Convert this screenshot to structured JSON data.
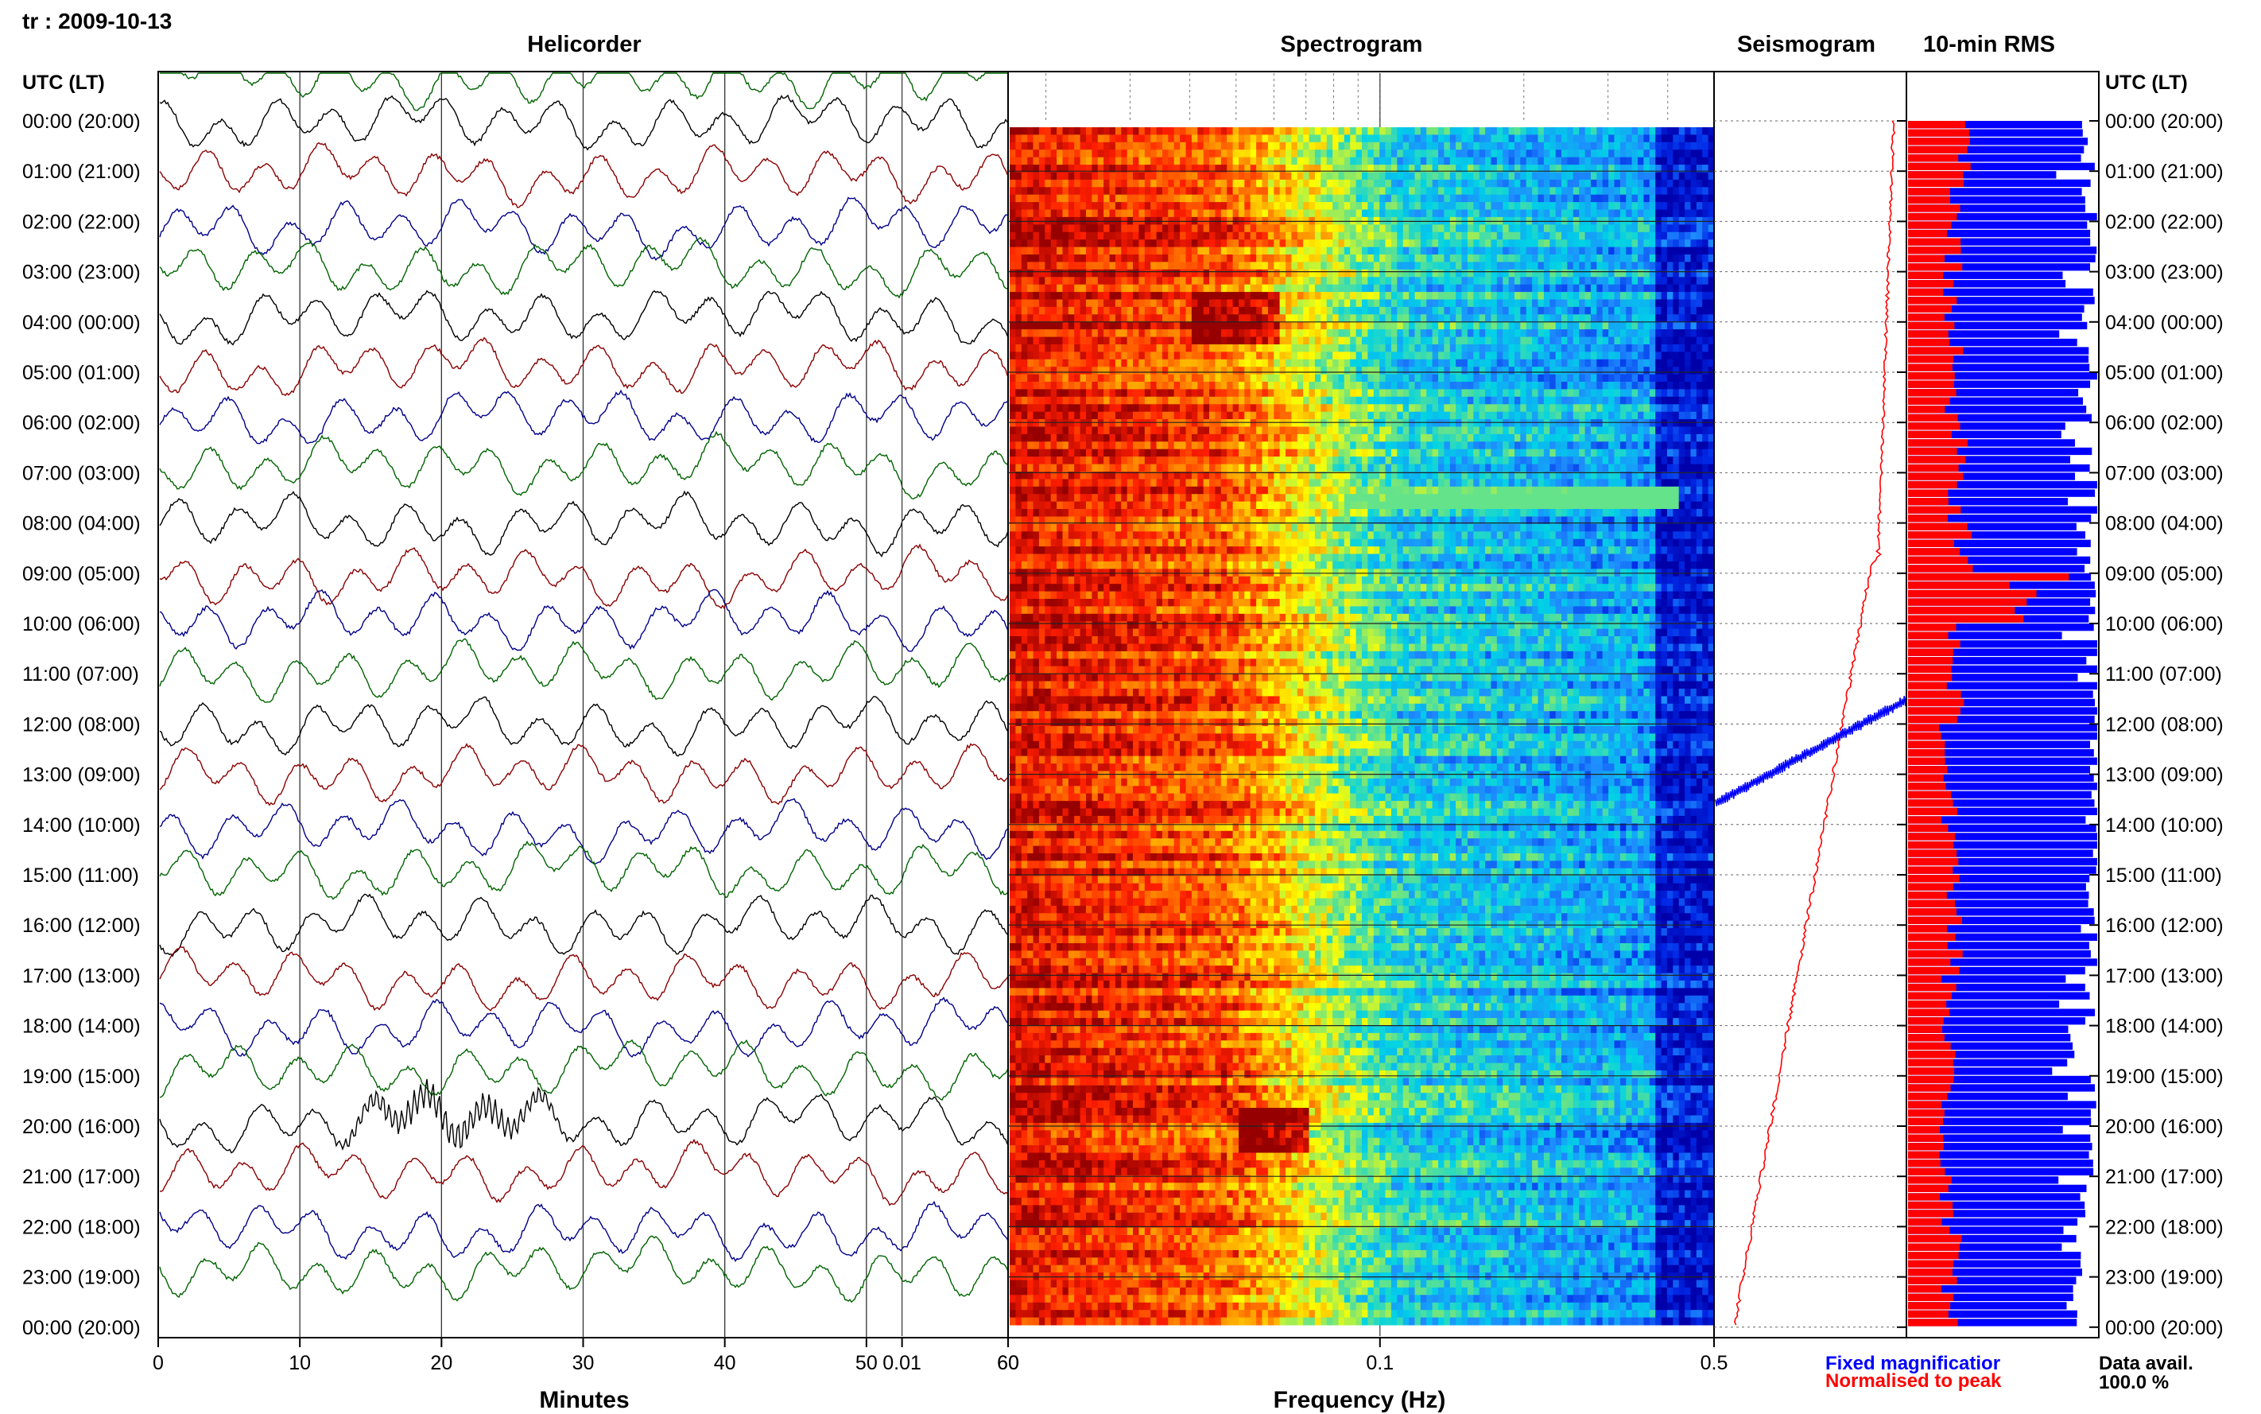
{
  "station_date": "tr : 2009-10-13",
  "titles": {
    "helicorder": "Helicorder",
    "spectrogram": "Spectrogram",
    "seismogram": "Seismogram",
    "rms": "10-min RMS"
  },
  "time_axis_header": "UTC (LT)",
  "hour_labels": [
    "00:00 (20:00)",
    "01:00 (21:00)",
    "02:00 (22:00)",
    "03:00 (23:00)",
    "04:00 (00:00)",
    "05:00 (01:00)",
    "06:00 (02:00)",
    "07:00 (03:00)",
    "08:00 (04:00)",
    "09:00 (05:00)",
    "10:00 (06:00)",
    "11:00 (07:00)",
    "12:00 (08:00)",
    "13:00 (09:00)",
    "14:00 (10:00)",
    "15:00 (11:00)",
    "16:00 (12:00)",
    "17:00 (13:00)",
    "18:00 (14:00)",
    "19:00 (15:00)",
    "20:00 (16:00)",
    "21:00 (17:00)",
    "22:00 (18:00)",
    "23:00 (19:00)",
    "00:00 (20:00)"
  ],
  "helicorder_axis": {
    "label": "Minutes",
    "ticks": [
      "0",
      "10",
      "20",
      "30",
      "40",
      "50",
      "60"
    ],
    "trace_colors": [
      "#000000",
      "#8b0000",
      "#00008b",
      "#006400"
    ]
  },
  "spectrogram_axis": {
    "label": "Frequency (Hz)",
    "ticks": [
      "60",
      "0.01",
      "0.1",
      "0.5"
    ]
  },
  "legend": {
    "fixed": "Fixed magnificatior",
    "fixed_color": "#0000ff",
    "normalised": "Normalised to peak",
    "normalised_color": "#ff0000"
  },
  "data_availability": {
    "label": "Data avail.",
    "value": "100.0 %"
  },
  "chart_data": [
    {
      "type": "line",
      "title": "Helicorder",
      "xlabel": "Minutes",
      "xlim": [
        0,
        60
      ],
      "ylim": [
        "00:00",
        "00:00 (+1d)"
      ],
      "rows": 24,
      "note_values": "continuous seismic traces, one per hour"
    },
    {
      "type": "heatmap",
      "title": "Spectrogram",
      "xlabel": "Frequency (Hz)",
      "x_scale": "log",
      "x_ticks": [
        "60",
        "0.01",
        "0.1",
        "0.5"
      ],
      "rows": 24
    },
    {
      "type": "line",
      "title": "Seismogram",
      "series": [
        {
          "name": "Fixed magnificatior",
          "color": "#0000ff"
        },
        {
          "name": "Normalised to peak",
          "color": "#ff0000"
        }
      ]
    },
    {
      "type": "bar",
      "title": "10-min RMS",
      "orientation": "horizontal",
      "bars_per_hour": 6,
      "series": [
        {
          "name": "Normalised to peak",
          "color": "#ff0000",
          "hourly_relative": [
            0.28,
            0.26,
            0.24,
            0.22,
            0.25,
            0.24,
            0.27,
            0.26,
            0.3,
            0.62,
            0.26,
            0.25,
            0.2,
            0.22,
            0.24,
            0.25,
            0.25,
            0.22,
            0.22,
            0.21,
            0.2,
            0.21,
            0.25,
            0.22
          ]
        },
        {
          "name": "Fixed magnificatior",
          "color": "#0000ff",
          "hourly_relative": [
            0.95,
            0.96,
            0.97,
            0.96,
            0.93,
            0.98,
            0.97,
            0.98,
            0.93,
            0.97,
            0.97,
            0.98,
            0.99,
            0.99,
            0.99,
            0.98,
            0.97,
            0.96,
            0.85,
            0.97,
            0.94,
            0.91,
            0.9,
            0.91
          ]
        }
      ]
    }
  ]
}
